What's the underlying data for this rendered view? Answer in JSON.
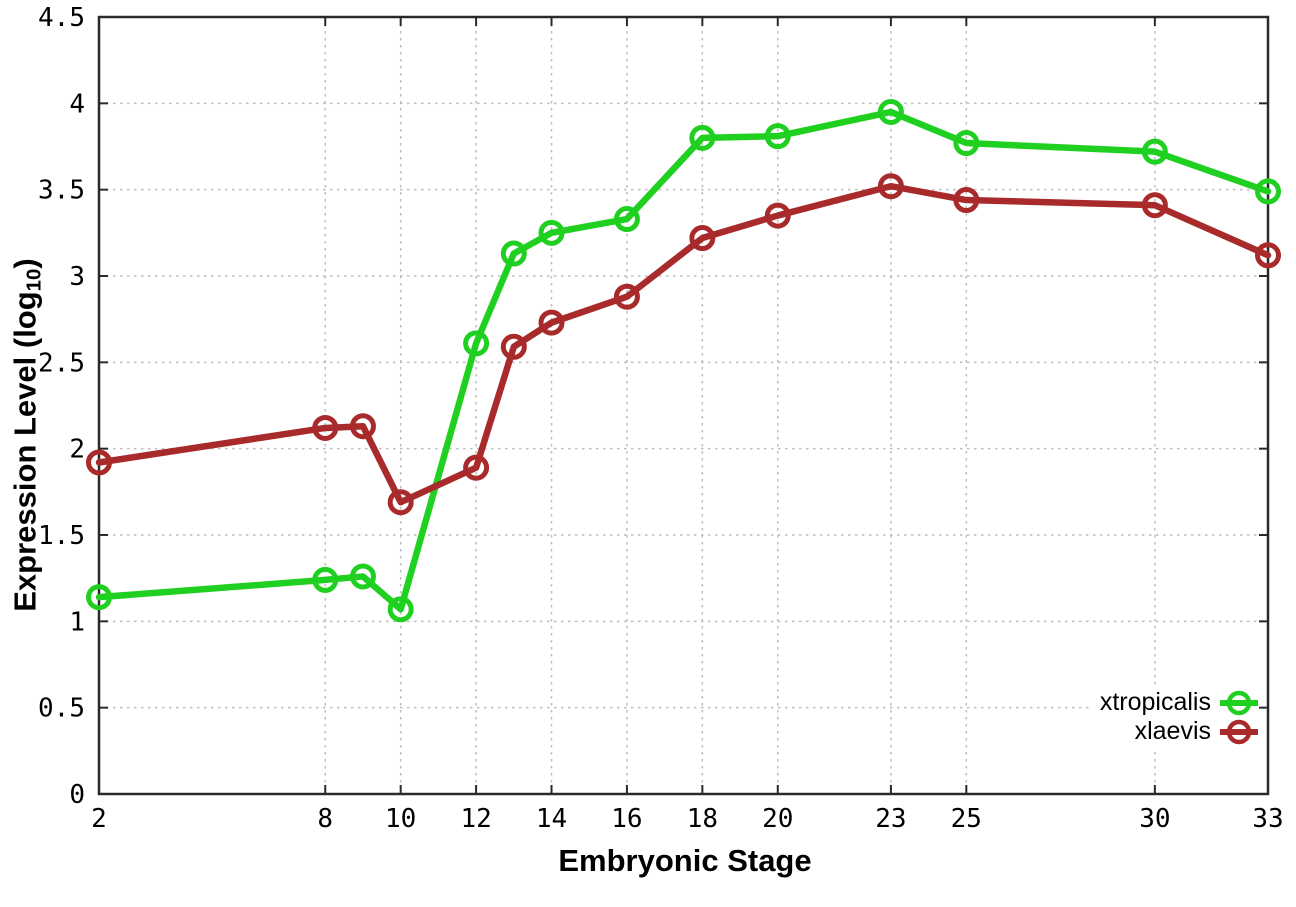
{
  "chart_data": {
    "type": "line",
    "title": "",
    "xlabel": "Embryonic Stage",
    "ylabel": "Expression Level (log10)",
    "ylabel_parts": {
      "prefix": "Expression Level (log",
      "sub": "10",
      "suffix": ")"
    },
    "xlim": [
      2,
      33
    ],
    "ylim": [
      0,
      4.5
    ],
    "xticks": [
      2,
      8,
      10,
      12,
      14,
      16,
      18,
      20,
      23,
      25,
      30,
      33
    ],
    "yticks": [
      0,
      0.5,
      1,
      1.5,
      2,
      2.5,
      3,
      3.5,
      4,
      4.5
    ],
    "grid": "dotted",
    "legend_position": "bottom-right",
    "legend_style": "opaque",
    "marker": "open-circle",
    "x": [
      2,
      8,
      9,
      10,
      12,
      13,
      14,
      16,
      18,
      20,
      23,
      25,
      30,
      33
    ],
    "series": [
      {
        "name": "xtropicalis",
        "color": "#20d020",
        "values": [
          1.14,
          1.24,
          1.26,
          1.07,
          2.61,
          3.13,
          3.25,
          3.33,
          3.8,
          3.81,
          3.95,
          3.77,
          3.72,
          3.49
        ]
      },
      {
        "name": "xlaevis",
        "color": "#a82a2a",
        "values": [
          1.92,
          2.12,
          2.13,
          1.69,
          1.89,
          2.59,
          2.73,
          2.88,
          3.22,
          3.35,
          3.52,
          3.44,
          3.41,
          3.12
        ]
      }
    ],
    "colors": {
      "grid": "#bcbcbc",
      "axis": "#2a2a2a",
      "text": "#000000",
      "background": "#ffffff"
    }
  }
}
